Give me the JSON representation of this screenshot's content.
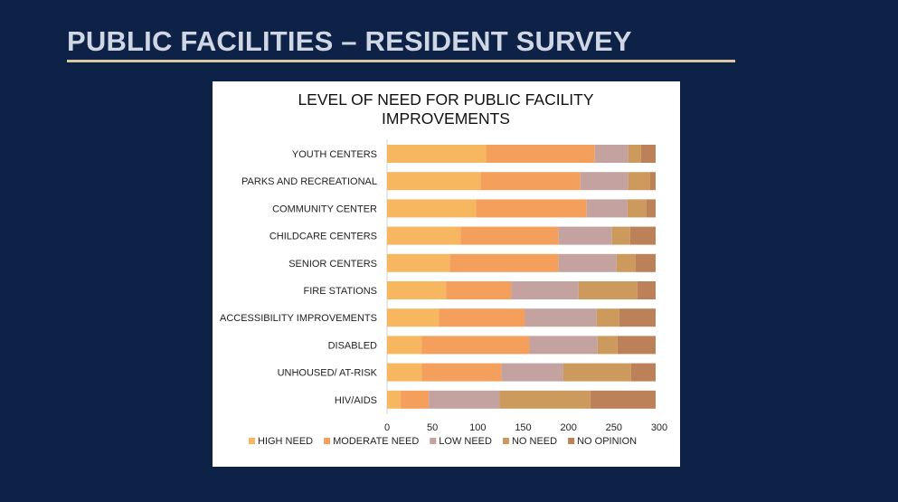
{
  "slide": {
    "title": "PUBLIC FACILITIES – RESIDENT SURVEY"
  },
  "chart_data": {
    "type": "bar",
    "orientation": "horizontal",
    "stacked": true,
    "title_lines": [
      "LEVEL OF NEED FOR PUBLIC FACILITY",
      "IMPROVEMENTS"
    ],
    "categories": [
      "YOUTH CENTERS",
      "PARKS AND RECREATIONAL",
      "COMMUNITY CENTER",
      "CHILDCARE CENTERS",
      "SENIOR CENTERS",
      "FIRE STATIONS",
      "ACCESSIBILITY IMPROVEMENTS",
      "DISABLED",
      "UNHOUSED/ AT-RISK",
      "HIV/AIDS"
    ],
    "series": [
      {
        "name": "HIGH NEED",
        "color": "#f7b660",
        "values": [
          109,
          103,
          98,
          81,
          69,
          65,
          57,
          38,
          38,
          15
        ]
      },
      {
        "name": "MODERATE NEED",
        "color": "#f49f5c",
        "values": [
          120,
          110,
          122,
          108,
          120,
          72,
          95,
          119,
          88,
          31
        ]
      },
      {
        "name": "LOW NEED",
        "color": "#c3a2a0",
        "values": [
          37,
          53,
          45,
          59,
          64,
          74,
          79,
          75,
          68,
          78
        ]
      },
      {
        "name": "NO NEED",
        "color": "#cd9a5d",
        "values": [
          14,
          24,
          21,
          20,
          21,
          65,
          25,
          22,
          75,
          100
        ]
      },
      {
        "name": "NO OPINION",
        "color": "#bc8158",
        "values": [
          16,
          6,
          10,
          28,
          22,
          20,
          40,
          42,
          27,
          72
        ]
      }
    ],
    "xlim": [
      0,
      300
    ],
    "xticks": [
      0,
      50,
      100,
      150,
      200,
      250,
      300
    ],
    "legend_position": "bottom"
  }
}
